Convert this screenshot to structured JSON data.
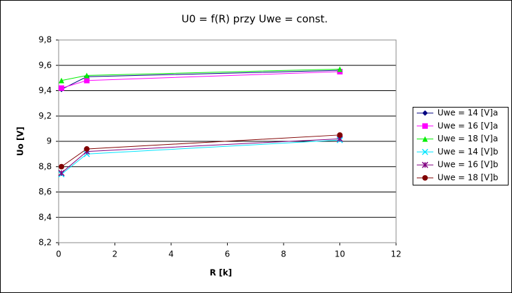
{
  "chart_data": {
    "type": "line",
    "title": "U0 = f(R) przy Uwe = const.",
    "x_label": "R [k]",
    "y_label": "Uo [V]",
    "xlim": [
      0,
      12
    ],
    "xticks": [
      0,
      2,
      4,
      6,
      8,
      10,
      12
    ],
    "ylim": [
      8.2,
      9.8
    ],
    "yticks": [
      {
        "value": 8.2,
        "label": "8,2"
      },
      {
        "value": 8.4,
        "label": "8,4"
      },
      {
        "value": 8.6,
        "label": "8,6"
      },
      {
        "value": 8.8,
        "label": "8,8"
      },
      9,
      {
        "value": 9.2,
        "label": "9,2"
      },
      {
        "value": 9.4,
        "label": "9,4"
      },
      {
        "value": 9.6,
        "label": "9,6"
      },
      {
        "value": 9.8,
        "label": "9,8"
      }
    ],
    "grid": true,
    "legend": "right",
    "series": [
      {
        "name": "Uwe = 14 [V]a",
        "color": "#000080",
        "marker": "diamond",
        "x": [
          0.1,
          1,
          10
        ],
        "values": [
          9.41,
          9.51,
          9.56
        ]
      },
      {
        "name": "Uwe = 16 [V]a",
        "color": "#ff00ff",
        "marker": "square",
        "x": [
          0.1,
          1,
          10
        ],
        "values": [
          9.42,
          9.48,
          9.55
        ]
      },
      {
        "name": "Uwe = 18 [V]a",
        "color": "#00ee00",
        "marker": "triangle",
        "x": [
          0.1,
          1,
          10
        ],
        "values": [
          9.48,
          9.52,
          9.57
        ]
      },
      {
        "name": "Uwe = 14 [V]b",
        "color": "#00e5ff",
        "marker": "cross",
        "x": [
          0.1,
          1,
          10
        ],
        "values": [
          8.74,
          8.9,
          9.01
        ]
      },
      {
        "name": "Uwe = 16 [V]b",
        "color": "#800080",
        "marker": "star",
        "x": [
          0.1,
          1,
          10
        ],
        "values": [
          8.75,
          8.92,
          9.02
        ]
      },
      {
        "name": "Uwe = 18 [V]b",
        "color": "#800000",
        "marker": "circle",
        "x": [
          0.1,
          1,
          10
        ],
        "values": [
          8.8,
          8.94,
          9.05
        ]
      }
    ]
  }
}
